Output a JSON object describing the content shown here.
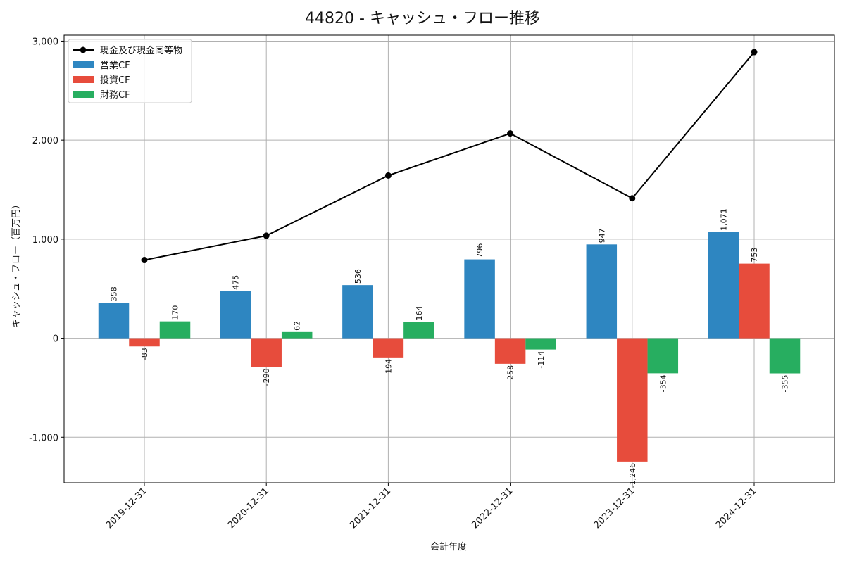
{
  "chart_data": {
    "type": "bar",
    "title": "44820 - キャッシュ・フロー推移",
    "xlabel": "会計年度",
    "ylabel": "キャッシュ・フロー（百万円）",
    "categories": [
      "2019-12-31",
      "2020-12-31",
      "2021-12-31",
      "2022-12-31",
      "2023-12-31",
      "2024-12-31"
    ],
    "ylim": [
      -1460,
      3060
    ],
    "yticks": [
      -1000,
      0,
      1000,
      2000,
      3000
    ],
    "ytick_labels": [
      "-1,000",
      "0",
      "1,000",
      "2,000",
      "3,000"
    ],
    "grid": true,
    "legend_position": "top-left",
    "series": [
      {
        "name": "営業CF",
        "kind": "bar",
        "color": "#2e86c1",
        "values": [
          358,
          475,
          536,
          796,
          947,
          1071
        ],
        "labels": [
          "358",
          "475",
          "536",
          "796",
          "947",
          "1,071"
        ]
      },
      {
        "name": "投資CF",
        "kind": "bar",
        "color": "#e74c3c",
        "values": [
          -83,
          -290,
          -194,
          -258,
          -1246,
          753
        ],
        "labels": [
          "-83",
          "-290",
          "-194",
          "-258",
          "-1,246",
          "753"
        ]
      },
      {
        "name": "財務CF",
        "kind": "bar",
        "color": "#27ae60",
        "values": [
          170,
          62,
          164,
          -114,
          -354,
          -355
        ],
        "labels": [
          "170",
          "62",
          "164",
          "-114",
          "-354",
          "-355"
        ]
      },
      {
        "name": "現金及び現金同等物",
        "kind": "line",
        "color": "#000000",
        "values": [
          789,
          1035,
          1643,
          2068,
          1413,
          2889
        ]
      }
    ]
  }
}
